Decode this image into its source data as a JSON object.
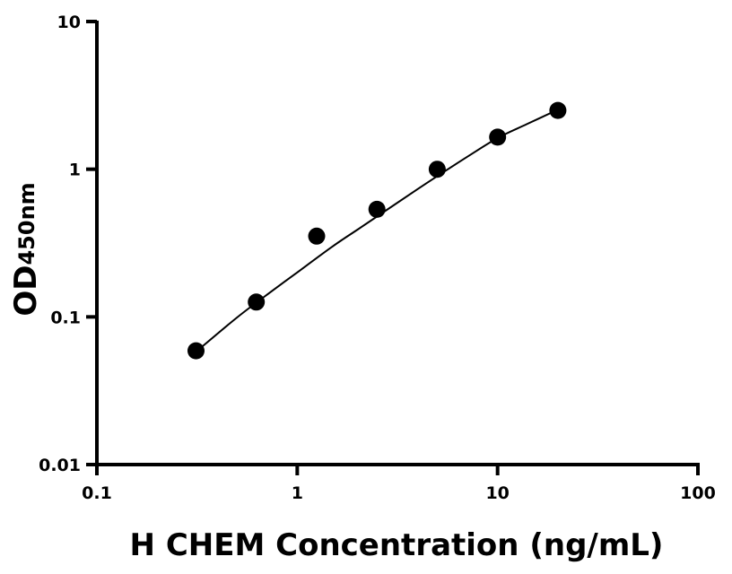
{
  "chart_data": {
    "type": "scatter",
    "xlabel": "H CHEM Concentration (ng/mL)",
    "ylabel": "OD",
    "ylabel_subscript": "450nm",
    "x_scale": "log",
    "y_scale": "log",
    "xlim": [
      0.1,
      100
    ],
    "ylim": [
      0.01,
      10
    ],
    "x_ticks": [
      0.1,
      1,
      10,
      100
    ],
    "x_tick_labels": [
      "0.1",
      "1",
      "10",
      "100"
    ],
    "y_ticks": [
      0.01,
      0.1,
      1,
      10
    ],
    "y_tick_labels": [
      "0.01",
      "0.1",
      "1",
      "10"
    ],
    "grid": false,
    "legend": "none",
    "series": [
      {
        "marker": "filled-circle",
        "x": [
          0.3125,
          0.625,
          1.25,
          2.5,
          5,
          10,
          20
        ],
        "y": [
          0.059,
          0.126,
          0.352,
          0.535,
          1.0,
          1.65,
          2.5
        ]
      }
    ],
    "fit_curve": {
      "x": [
        0.3125,
        0.5,
        0.75,
        1,
        1.5,
        2,
        3,
        4,
        5,
        7,
        10,
        14,
        20
      ],
      "y": [
        0.058,
        0.099,
        0.15,
        0.2,
        0.3,
        0.39,
        0.565,
        0.735,
        0.898,
        1.205,
        1.625,
        2.02,
        2.53
      ]
    },
    "colors": {
      "marker": "#000000",
      "line": "#000000",
      "axis": "#000000"
    }
  }
}
